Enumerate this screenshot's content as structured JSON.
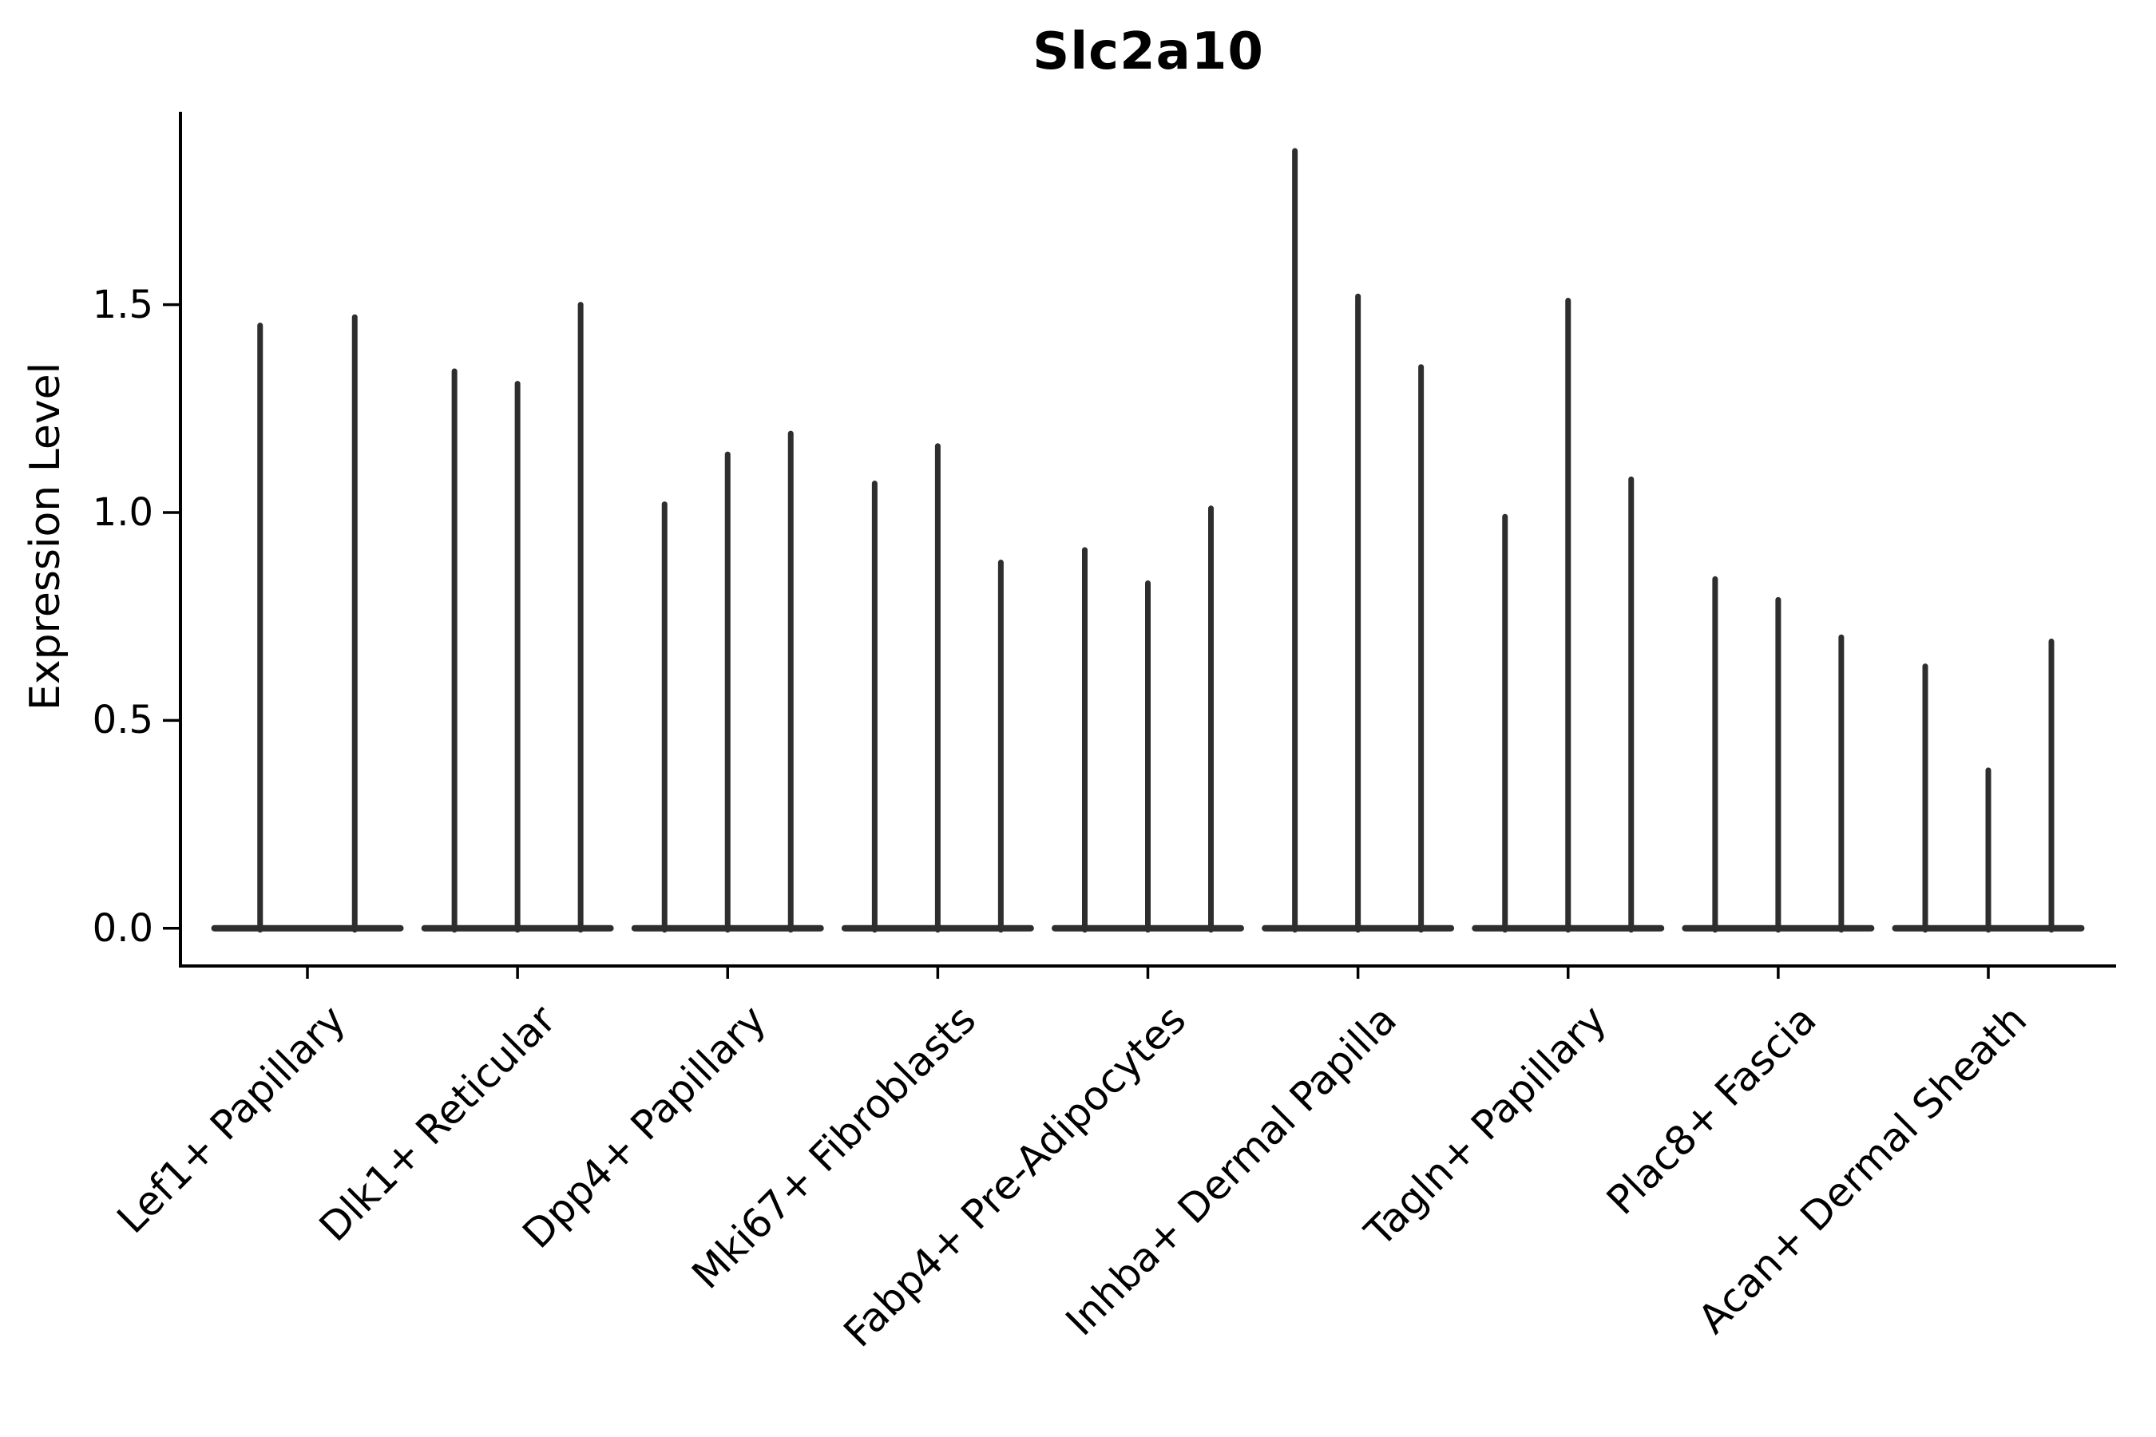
{
  "title": "Slc2a10",
  "ylabel": "Expression Level",
  "chart_data": {
    "type": "violin",
    "title": "Slc2a10",
    "xlabel": "",
    "ylabel": "Expression Level",
    "ylim": [
      -0.09,
      1.96
    ],
    "ytick_labels": [
      "0.0",
      "0.5",
      "1.0",
      "1.5"
    ],
    "ytick_values": [
      0.0,
      0.5,
      1.0,
      1.5
    ],
    "grid": false,
    "legend": "none",
    "description": "Thin spike-shaped violins: expression concentrated at 0 with a narrow tail up to the peak value; groups of violins per cell-type category",
    "categories": [
      "Lef1+ Papillary",
      "Dlk1+ Reticular",
      "Dpp4+ Papillary",
      "Mki67+ Fibroblasts",
      "Fabp4+ Pre-Adipocytes",
      "Inhba+ Dermal Papilla",
      "Tagln+ Papillary",
      "Plac8+ Fascia",
      "Acan+ Dermal Sheath"
    ],
    "groups": [
      {
        "category": "Lef1+ Papillary",
        "peaks": [
          1.45,
          1.47
        ]
      },
      {
        "category": "Dlk1+ Reticular",
        "peaks": [
          1.34,
          1.31,
          1.5
        ]
      },
      {
        "category": "Dpp4+ Papillary",
        "peaks": [
          1.02,
          1.14,
          1.19
        ]
      },
      {
        "category": "Mki67+ Fibroblasts",
        "peaks": [
          1.07,
          1.16,
          0.88
        ]
      },
      {
        "category": "Fabp4+ Pre-Adipocytes",
        "peaks": [
          0.91,
          0.83,
          1.01
        ]
      },
      {
        "category": "Inhba+ Dermal Papilla",
        "peaks": [
          1.87,
          1.52,
          1.35
        ]
      },
      {
        "category": "Tagln+ Papillary",
        "peaks": [
          0.99,
          1.51,
          1.08
        ]
      },
      {
        "category": "Plac8+ Fascia",
        "peaks": [
          0.84,
          0.79,
          0.7
        ]
      },
      {
        "category": "Acan+ Dermal Sheath",
        "peaks": [
          0.63,
          0.38,
          0.69
        ]
      }
    ],
    "violin_color": "#2e2e2e",
    "axis_color": "#000000",
    "background": "#ffffff"
  }
}
